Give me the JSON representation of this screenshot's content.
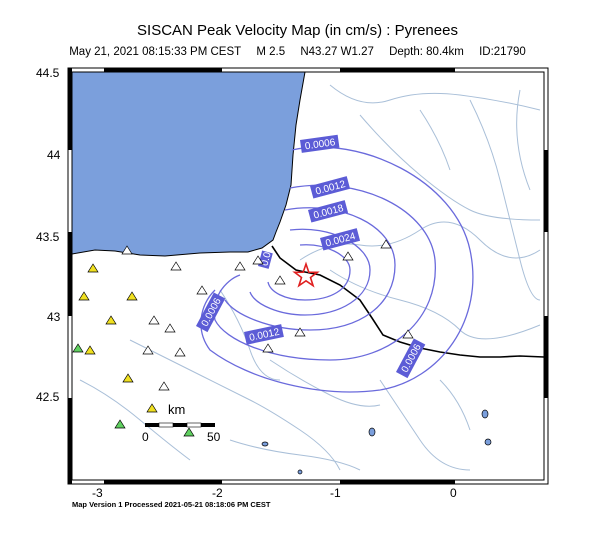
{
  "header": {
    "title": "SISCAN Peak Velocity Map (in cm/s) : Pyrenees",
    "datetime": "May 21, 2021 08:15:33 PM CEST",
    "magnitude": "M 2.5",
    "location": "N43.27 W1.27",
    "depth": "Depth: 80.4km",
    "event_id": "ID:21790"
  },
  "footer": {
    "text": "Map Version 1 Processed 2021-05-21 08:18:06 PM CEST"
  },
  "axes": {
    "lat_ticks": [
      "44.5",
      "44",
      "43.5",
      "43",
      "42.5"
    ],
    "lon_ticks": [
      "-3",
      "-2",
      "-1",
      "0"
    ]
  },
  "scale_bar": {
    "unit": "km",
    "min_label": "0",
    "max_label": "50"
  },
  "contours": [
    {
      "label": "0.0006"
    },
    {
      "label": "0.0012"
    },
    {
      "label": "0.0018"
    },
    {
      "label": "0.0024"
    },
    {
      "label": "0.0012"
    },
    {
      "label": "0.0006"
    },
    {
      "label": "0.0006"
    },
    {
      "label": "0.0"
    }
  ],
  "colors": {
    "sea": "#7b9fdc",
    "river": "#a9bfd8",
    "contour": "#6a6adc",
    "contour_label_bg": "#5c5cd6",
    "epicenter": "#e02020",
    "station_yellow": "#f0e020",
    "station_green": "#60d060",
    "station_white": "#ffffff"
  },
  "epicenter_icon": "star-icon",
  "station_icon": "triangle-icon"
}
